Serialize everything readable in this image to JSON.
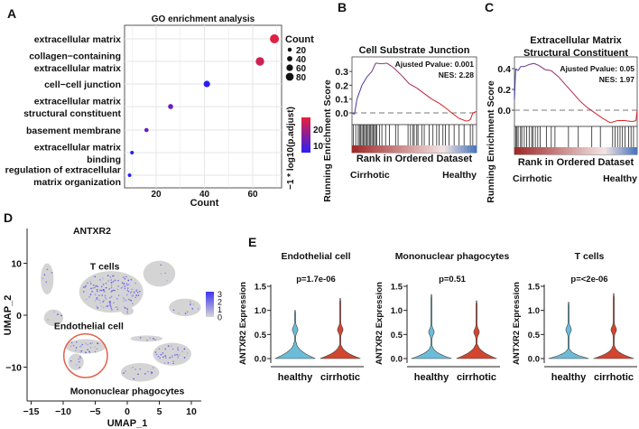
{
  "panel_letters": [
    "A",
    "B",
    "C",
    "D",
    "E"
  ],
  "chart_data": [
    {
      "id": "A",
      "type": "scatter",
      "title": "GO enrichment analysis",
      "xlabel": "Count",
      "xticks": [
        20,
        40,
        60
      ],
      "xlim": [
        7,
        72
      ],
      "terms": [
        {
          "label": [
            "extracellular matrix"
          ],
          "count": 69,
          "neglog10_padj": 25
        },
        {
          "label": [
            "collagen−containing",
            "extracellular matrix"
          ],
          "count": 63,
          "neglog10_padj": 23
        },
        {
          "label": [
            "cell−cell junction"
          ],
          "count": 41,
          "neglog10_padj": 5
        },
        {
          "label": [
            "extracellular matrix",
            "structural constituent"
          ],
          "count": 26,
          "neglog10_padj": 12
        },
        {
          "label": [
            "basement membrane"
          ],
          "count": 16,
          "neglog10_padj": 11
        },
        {
          "label": [
            "extracellular matrix",
            "binding"
          ],
          "count": 10,
          "neglog10_padj": 5
        },
        {
          "label": [
            "regulation of extracellular",
            "matrix organization"
          ],
          "count": 9,
          "neglog10_padj": 5
        }
      ],
      "size_legend": {
        "title": "Count",
        "values": [
          20,
          40,
          60,
          80
        ]
      },
      "color_legend": {
        "title": "−1 * log10(p.adjust)",
        "ticks": [
          10,
          20
        ],
        "range": [
          5,
          26
        ],
        "low": "#2a1ff5",
        "high": "#e8213a"
      }
    },
    {
      "id": "B",
      "type": "line",
      "title": [
        "Cell Substrate Junction"
      ],
      "ylabel": "Running Enrichment Score",
      "xlabel": "Rank in Ordered Dataset",
      "left_label": "Cirrhotic",
      "right_label": "Healthy",
      "annotations": [
        "Ajusted Pvalue: 0.001",
        "NES: 2.28"
      ],
      "yticks": [
        "0.3",
        "0.2",
        "0.1",
        "0.0"
      ],
      "ylim": [
        -0.08,
        0.4
      ],
      "curve": [
        [
          0,
          0
        ],
        [
          0.02,
          -0.01
        ],
        [
          0.04,
          0.1
        ],
        [
          0.08,
          0.2
        ],
        [
          0.12,
          0.26
        ],
        [
          0.16,
          0.3
        ],
        [
          0.19,
          0.36
        ],
        [
          0.24,
          0.355
        ],
        [
          0.28,
          0.36
        ],
        [
          0.33,
          0.33
        ],
        [
          0.4,
          0.27
        ],
        [
          0.46,
          0.21
        ],
        [
          0.52,
          0.18
        ],
        [
          0.58,
          0.14
        ],
        [
          0.64,
          0.1
        ],
        [
          0.7,
          0.07
        ],
        [
          0.76,
          0.03
        ],
        [
          0.8,
          0.0
        ],
        [
          0.86,
          -0.04
        ],
        [
          0.92,
          -0.06
        ],
        [
          0.95,
          -0.05
        ],
        [
          0.97,
          0.0
        ],
        [
          1,
          0.01
        ]
      ],
      "hits": [
        0.01,
        0.03,
        0.05,
        0.06,
        0.07,
        0.08,
        0.09,
        0.1,
        0.11,
        0.12,
        0.13,
        0.14,
        0.15,
        0.16,
        0.17,
        0.18,
        0.19,
        0.2,
        0.22,
        0.24,
        0.27,
        0.3,
        0.35,
        0.37,
        0.45,
        0.47,
        0.49,
        0.5,
        0.52,
        0.53,
        0.56,
        0.58,
        0.62,
        0.65,
        0.68,
        0.7,
        0.73,
        0.75,
        0.78,
        0.82,
        0.86,
        0.9,
        0.95,
        0.97
      ]
    },
    {
      "id": "C",
      "type": "line",
      "title": [
        "Extracellular Matrix",
        "Structural Constituent"
      ],
      "ylabel": "Running Enrichment Score",
      "xlabel": "Rank in Ordered Dataset",
      "left_label": "Cirrhotic",
      "right_label": "Healthy",
      "annotations": [
        "Ajusted Pvalue: 0.05",
        "NES: 1.97"
      ],
      "yticks": [
        "0.4",
        "0.2",
        "0.0"
      ],
      "ylim": [
        -0.16,
        0.5
      ],
      "curve": [
        [
          0,
          0.1
        ],
        [
          0.01,
          0.4
        ],
        [
          0.03,
          0.38
        ],
        [
          0.05,
          0.42
        ],
        [
          0.08,
          0.42
        ],
        [
          0.12,
          0.44
        ],
        [
          0.16,
          0.45
        ],
        [
          0.2,
          0.43
        ],
        [
          0.25,
          0.39
        ],
        [
          0.3,
          0.38
        ],
        [
          0.36,
          0.32
        ],
        [
          0.42,
          0.24
        ],
        [
          0.48,
          0.16
        ],
        [
          0.54,
          0.08
        ],
        [
          0.6,
          0.02
        ],
        [
          0.66,
          -0.03
        ],
        [
          0.72,
          -0.08
        ],
        [
          0.78,
          -0.12
        ],
        [
          0.84,
          -0.1
        ],
        [
          0.9,
          -0.1
        ],
        [
          0.96,
          -0.11
        ],
        [
          0.99,
          -0.1
        ],
        [
          1,
          0.0
        ]
      ],
      "hits": [
        0.01,
        0.02,
        0.03,
        0.05,
        0.06,
        0.08,
        0.1,
        0.12,
        0.14,
        0.15,
        0.17,
        0.19,
        0.21,
        0.26,
        0.3,
        0.33,
        0.44,
        0.52,
        0.63,
        0.7,
        0.8,
        0.82,
        0.84,
        0.86,
        0.88,
        0.9,
        0.93,
        0.95,
        0.97
      ]
    },
    {
      "id": "D",
      "type": "scatter",
      "title": "ANTXR2",
      "xlabel": "UMAP_1",
      "ylabel": "UMAP_2",
      "xticks": [
        -15,
        -10,
        -5,
        0,
        5,
        10
      ],
      "yticks": [
        10,
        0,
        -10
      ],
      "xlim": [
        -16,
        11.5
      ],
      "ylim": [
        -16,
        16
      ],
      "cluster_labels": [
        {
          "text": "T cells",
          "x": -3.5,
          "y": 9.5
        },
        {
          "text": "Endothelial cell",
          "x": -6,
          "y": -2
        },
        {
          "text": "Mononuclear phagocytes",
          "x": 0,
          "y": -14.5
        }
      ],
      "clusters": [
        {
          "cx": -12.5,
          "cy": 7,
          "rx": 1,
          "ry": 3,
          "expr": 0.15
        },
        {
          "cx": -11.5,
          "cy": -0.5,
          "rx": 1.5,
          "ry": 1.6,
          "expr": 0.15
        },
        {
          "cx": -2.5,
          "cy": 4.5,
          "rx": 5,
          "ry": 4,
          "expr": 0.6
        },
        {
          "cx": 5,
          "cy": 8,
          "rx": 2.5,
          "ry": 2.5,
          "expr": 0.05
        },
        {
          "cx": 9,
          "cy": 1.5,
          "rx": 2.5,
          "ry": 1.7,
          "expr": 0.2
        },
        {
          "cx": 0,
          "cy": 0.8,
          "rx": 1,
          "ry": 0.8,
          "expr": 0.4
        },
        {
          "cx": -6.5,
          "cy": -6,
          "rx": 3.2,
          "ry": 1.4,
          "expr": 0.5
        },
        {
          "cx": -8,
          "cy": -9,
          "rx": 1.2,
          "ry": 1.6,
          "expr": 0.3
        },
        {
          "cx": 3,
          "cy": -4.5,
          "rx": 2.5,
          "ry": 0.6,
          "expr": 0.3
        },
        {
          "cx": 7,
          "cy": -7.5,
          "rx": 3,
          "ry": 2.2,
          "expr": 0.45
        },
        {
          "cx": 2,
          "cy": -11,
          "rx": 3,
          "ry": 1.8,
          "expr": 0.2
        }
      ],
      "highlight": {
        "cx": -6.5,
        "cy": -7.8,
        "r": 3.4,
        "color": "#e0624a"
      },
      "colorbar": {
        "ticks": [
          "3",
          "2",
          "1",
          "0"
        ],
        "low": "#d6d6d6",
        "high": "#3b35f0"
      }
    },
    {
      "id": "E",
      "type": "violin",
      "ylabel": "ANTXR2 Expression",
      "yticks": [
        "1.5",
        "1.0",
        "0.5",
        "0.0"
      ],
      "ylim": [
        0,
        1.5
      ],
      "categories": [
        "healthy",
        "cirrhotic"
      ],
      "colors": {
        "healthy": "#6cbcd8",
        "cirrhotic": "#d2452f"
      },
      "panels": [
        {
          "title": "Endothelial cell",
          "pvalue": "p=1.7e-06",
          "max": [
            1.0,
            1.25
          ],
          "neck": [
            0.33,
            0.28
          ],
          "bump": [
            0.6,
            0.6
          ]
        },
        {
          "title": "Mononuclear phagocytes",
          "pvalue": "p=0.51",
          "max": [
            1.33,
            1.2
          ],
          "neck": [
            0.25,
            0.3
          ],
          "bump": [
            0.55,
            0.55
          ]
        },
        {
          "title": "T cells",
          "pvalue": "p=<2e-06",
          "max": [
            1.17,
            1.35
          ],
          "neck": [
            0.2,
            0.25
          ],
          "bump": [
            0.6,
            0.6
          ]
        }
      ]
    }
  ]
}
